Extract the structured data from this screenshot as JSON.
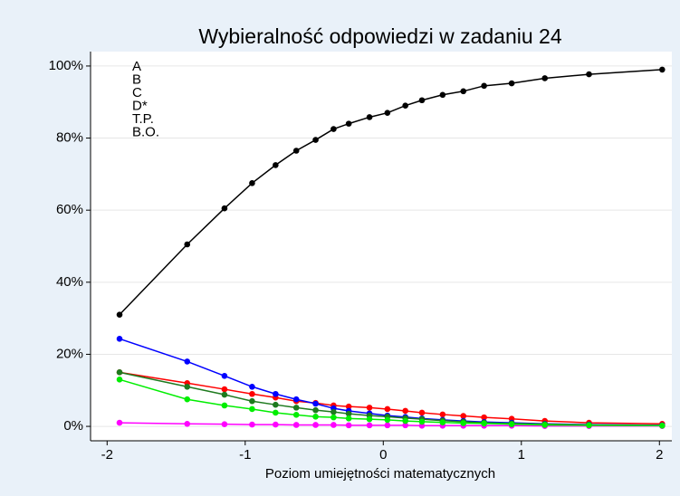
{
  "chart_data": {
    "type": "line",
    "title": "Wybieralność odpowiedzi w zadaniu 24",
    "x_label": "Poziom umiejętności matematycznych",
    "x": [
      -1.91,
      -1.42,
      -1.15,
      -0.95,
      -0.78,
      -0.63,
      -0.49,
      -0.36,
      -0.25,
      -0.1,
      0.03,
      0.16,
      0.28,
      0.43,
      0.58,
      0.73,
      0.93,
      1.17,
      1.49,
      2.02
    ],
    "series": [
      {
        "name": "A",
        "color": "#ff0000",
        "values": [
          15,
          12,
          10.3,
          9,
          8,
          7,
          6.5,
          5.8,
          5.5,
          5.2,
          4.8,
          4.3,
          3.8,
          3.3,
          2.9,
          2.5,
          2.1,
          1.5,
          1,
          0.7
        ]
      },
      {
        "name": "B",
        "color": "#0000ff",
        "values": [
          24.3,
          18,
          14,
          11,
          9,
          7.5,
          6.3,
          5,
          4.3,
          3.6,
          3,
          2.6,
          2.2,
          1.8,
          1.5,
          1.2,
          1,
          0.7,
          0.5,
          0.3
        ]
      },
      {
        "name": "C",
        "color": "#1e7a1e",
        "values": [
          15,
          11,
          8.8,
          7,
          6,
          5.2,
          4.5,
          4,
          3.5,
          3,
          2.7,
          2.3,
          2,
          1.6,
          1.3,
          1,
          0.8,
          0.6,
          0.4,
          0.2
        ]
      },
      {
        "name": "D*",
        "color": "#000000",
        "values": [
          31,
          50.5,
          60.5,
          67.5,
          72.5,
          76.5,
          79.5,
          82.5,
          84,
          85.8,
          87,
          89,
          90.5,
          92,
          93,
          94.5,
          95.2,
          96.6,
          97.7,
          99
        ]
      },
      {
        "name": "T.P.",
        "color": "#ff00ff",
        "values": [
          1,
          0.7,
          0.6,
          0.5,
          0.5,
          0.4,
          0.4,
          0.4,
          0.3,
          0.3,
          0.3,
          0.3,
          0.2,
          0.2,
          0.2,
          0.2,
          0.2,
          0.1,
          0.1,
          0.1
        ]
      },
      {
        "name": "B.O.",
        "color": "#00ee00",
        "values": [
          13,
          7.5,
          5.8,
          4.8,
          3.8,
          3.2,
          2.7,
          2.5,
          2.2,
          2,
          1.8,
          1.5,
          1.3,
          1.1,
          0.9,
          0.8,
          0.6,
          0.4,
          0.3,
          0.2
        ]
      }
    ],
    "xlim": [
      -2.12,
      2.09
    ],
    "xticks": [
      -2,
      -1,
      0,
      1,
      2
    ],
    "ylim": [
      -4,
      104
    ],
    "yticks": [
      {
        "value": 0,
        "label": "0%"
      },
      {
        "value": 20,
        "label": "20%"
      },
      {
        "value": 40,
        "label": "40%"
      },
      {
        "value": 60,
        "label": "60%"
      },
      {
        "value": 80,
        "label": "80%"
      },
      {
        "value": 100,
        "label": "100%"
      }
    ],
    "grid": true,
    "legend": "top-left"
  }
}
